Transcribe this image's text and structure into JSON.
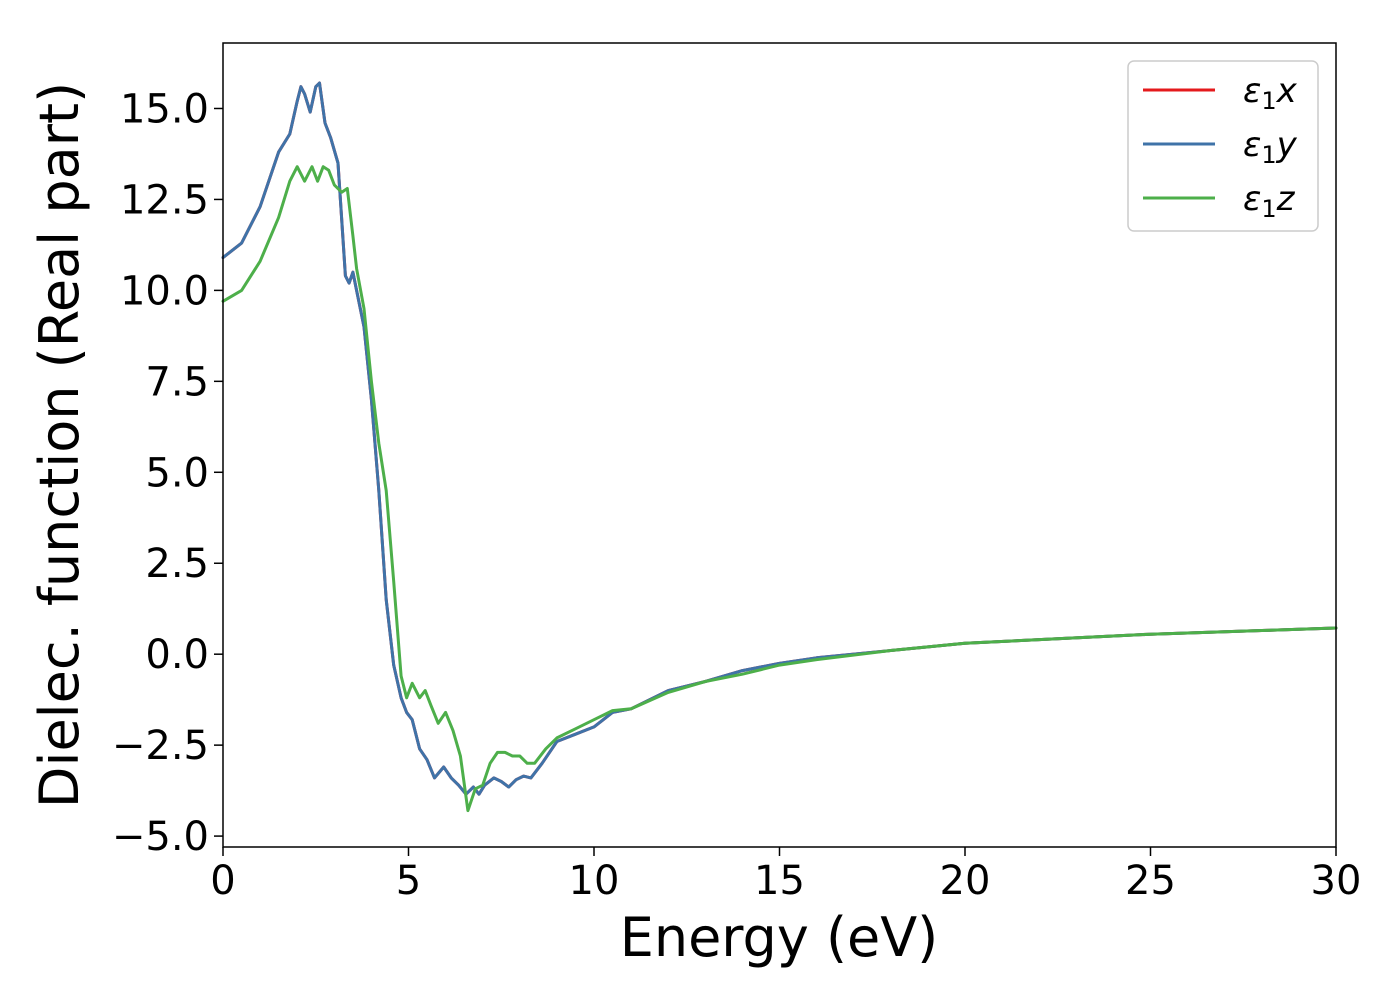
{
  "chart_data": {
    "type": "line",
    "title": "",
    "xlabel": "Energy (eV)",
    "ylabel": "Dielec. function (Real part)",
    "xlim": [
      0,
      30
    ],
    "ylim": [
      -5.3,
      16.8
    ],
    "xticks": [
      0,
      5,
      10,
      15,
      20,
      25,
      30
    ],
    "xtick_labels": [
      "0",
      "5",
      "10",
      "15",
      "20",
      "25",
      "30"
    ],
    "yticks": [
      -5.0,
      -2.5,
      0.0,
      2.5,
      5.0,
      7.5,
      10.0,
      12.5,
      15.0
    ],
    "ytick_labels": [
      "−5.0",
      "−2.5",
      "0.0",
      "2.5",
      "5.0",
      "7.5",
      "10.0",
      "12.5",
      "15.0"
    ],
    "grid": false,
    "legend_position": "top-right",
    "series": [
      {
        "name": "ε1x",
        "symbol": "ε",
        "sub": "1",
        "axis": "x",
        "color": "#e41a1c",
        "x": [
          0,
          0.5,
          1.0,
          1.5,
          1.8,
          2.0,
          2.1,
          2.2,
          2.35,
          2.5,
          2.6,
          2.75,
          2.9,
          3.1,
          3.3,
          3.4,
          3.5,
          3.6,
          3.8,
          4.0,
          4.2,
          4.4,
          4.6,
          4.8,
          4.95,
          5.1,
          5.3,
          5.5,
          5.7,
          5.95,
          6.15,
          6.35,
          6.55,
          6.75,
          6.9,
          7.05,
          7.3,
          7.5,
          7.7,
          7.9,
          8.1,
          8.3,
          8.6,
          9.0,
          9.5,
          10.0,
          10.5,
          11.0,
          12.0,
          13.0,
          14.0,
          15.0,
          16.0,
          18.0,
          20.0,
          22.0,
          25.0,
          28.0,
          30.0
        ],
        "y": [
          10.9,
          11.3,
          12.3,
          13.8,
          14.3,
          15.2,
          15.6,
          15.4,
          14.9,
          15.6,
          15.7,
          14.6,
          14.2,
          13.5,
          10.4,
          10.2,
          10.5,
          10.0,
          9.0,
          7.0,
          4.5,
          1.5,
          -0.3,
          -1.2,
          -1.6,
          -1.8,
          -2.6,
          -2.9,
          -3.4,
          -3.1,
          -3.4,
          -3.6,
          -3.85,
          -3.65,
          -3.85,
          -3.6,
          -3.4,
          -3.5,
          -3.65,
          -3.45,
          -3.35,
          -3.4,
          -3.0,
          -2.4,
          -2.2,
          -2.0,
          -1.6,
          -1.5,
          -1.0,
          -0.75,
          -0.45,
          -0.25,
          -0.1,
          0.1,
          0.3,
          0.4,
          0.55,
          0.65,
          0.72
        ]
      },
      {
        "name": "ε1y",
        "symbol": "ε",
        "sub": "1",
        "axis": "y",
        "color": "#3f73a8",
        "x": [
          0,
          0.5,
          1.0,
          1.5,
          1.8,
          2.0,
          2.1,
          2.2,
          2.35,
          2.5,
          2.6,
          2.75,
          2.9,
          3.1,
          3.3,
          3.4,
          3.5,
          3.6,
          3.8,
          4.0,
          4.2,
          4.4,
          4.6,
          4.8,
          4.95,
          5.1,
          5.3,
          5.5,
          5.7,
          5.95,
          6.15,
          6.35,
          6.55,
          6.75,
          6.9,
          7.05,
          7.3,
          7.5,
          7.7,
          7.9,
          8.1,
          8.3,
          8.6,
          9.0,
          9.5,
          10.0,
          10.5,
          11.0,
          12.0,
          13.0,
          14.0,
          15.0,
          16.0,
          18.0,
          20.0,
          22.0,
          25.0,
          28.0,
          30.0
        ],
        "y": [
          10.9,
          11.3,
          12.3,
          13.8,
          14.3,
          15.2,
          15.6,
          15.4,
          14.9,
          15.6,
          15.7,
          14.6,
          14.2,
          13.5,
          10.4,
          10.2,
          10.5,
          10.0,
          9.0,
          7.0,
          4.5,
          1.5,
          -0.3,
          -1.2,
          -1.6,
          -1.8,
          -2.6,
          -2.9,
          -3.4,
          -3.1,
          -3.4,
          -3.6,
          -3.85,
          -3.65,
          -3.85,
          -3.6,
          -3.4,
          -3.5,
          -3.65,
          -3.45,
          -3.35,
          -3.4,
          -3.0,
          -2.4,
          -2.2,
          -2.0,
          -1.6,
          -1.5,
          -1.0,
          -0.75,
          -0.45,
          -0.25,
          -0.1,
          0.1,
          0.3,
          0.4,
          0.55,
          0.65,
          0.72
        ]
      },
      {
        "name": "ε1z",
        "symbol": "ε",
        "sub": "1",
        "axis": "z",
        "color": "#4daf4a",
        "x": [
          0,
          0.5,
          1.0,
          1.5,
          1.8,
          2.0,
          2.2,
          2.4,
          2.55,
          2.7,
          2.85,
          3.0,
          3.2,
          3.35,
          3.5,
          3.6,
          3.8,
          4.0,
          4.2,
          4.4,
          4.6,
          4.8,
          4.95,
          5.1,
          5.3,
          5.45,
          5.6,
          5.8,
          6.0,
          6.2,
          6.4,
          6.6,
          6.8,
          7.0,
          7.2,
          7.4,
          7.6,
          7.8,
          8.0,
          8.2,
          8.4,
          8.7,
          9.0,
          9.5,
          10.0,
          10.5,
          11.0,
          12.0,
          13.0,
          14.0,
          15.0,
          16.0,
          18.0,
          20.0,
          22.0,
          25.0,
          28.0,
          30.0
        ],
        "y": [
          9.7,
          10.0,
          10.8,
          12.0,
          13.0,
          13.4,
          13.0,
          13.4,
          13.0,
          13.4,
          13.3,
          12.9,
          12.7,
          12.8,
          11.5,
          10.6,
          9.5,
          7.5,
          5.8,
          4.5,
          2.0,
          -0.6,
          -1.2,
          -0.8,
          -1.2,
          -1.0,
          -1.4,
          -1.9,
          -1.6,
          -2.1,
          -2.8,
          -4.3,
          -3.7,
          -3.6,
          -3.0,
          -2.7,
          -2.7,
          -2.8,
          -2.8,
          -3.0,
          -3.0,
          -2.6,
          -2.3,
          -2.05,
          -1.8,
          -1.55,
          -1.5,
          -1.05,
          -0.75,
          -0.55,
          -0.3,
          -0.15,
          0.1,
          0.3,
          0.4,
          0.55,
          0.65,
          0.72
        ]
      }
    ]
  }
}
